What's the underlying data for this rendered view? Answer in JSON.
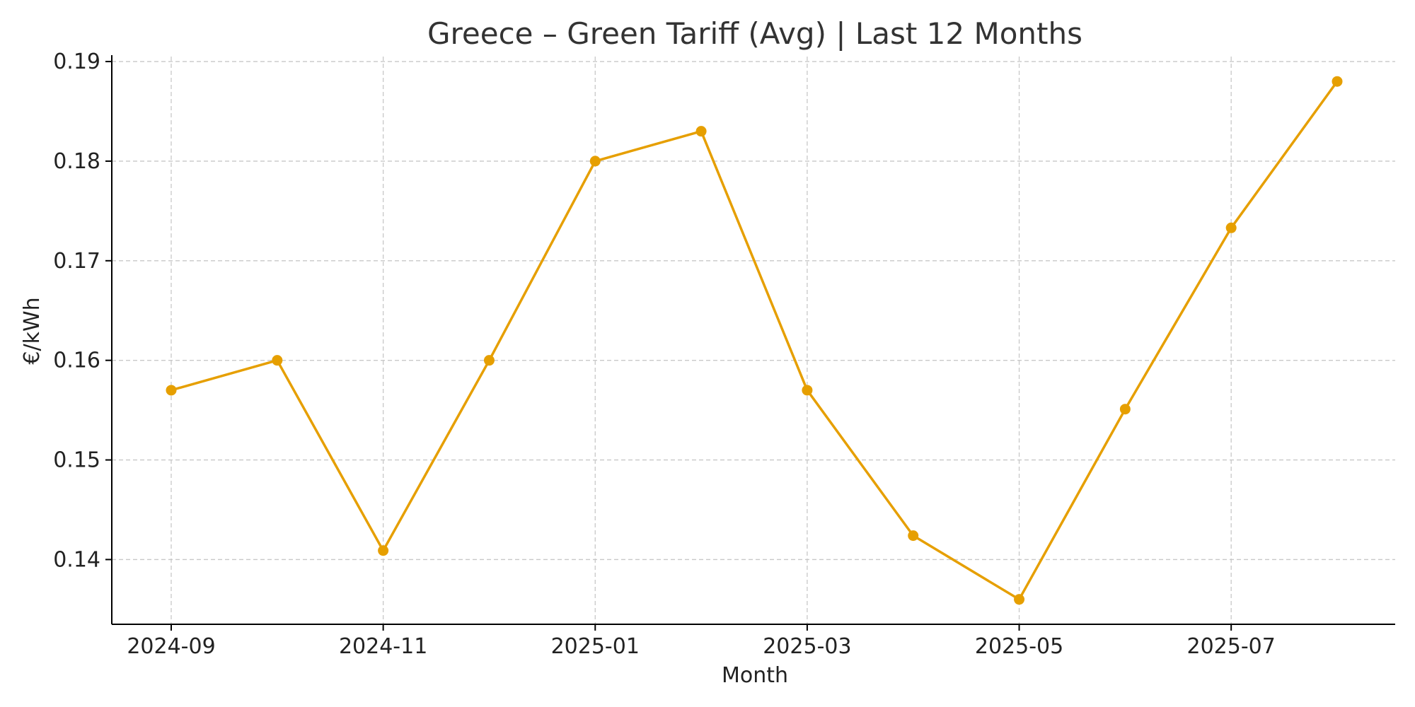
{
  "chart_data": {
    "type": "line",
    "title": "Greece – Green Tariff (Avg) | Last 12 Months",
    "xlabel": "Month",
    "ylabel": "€/kWh",
    "x": [
      "2024-09",
      "2024-10",
      "2024-11",
      "2024-12",
      "2025-01",
      "2025-02",
      "2025-03",
      "2025-04",
      "2025-05",
      "2025-06",
      "2025-07",
      "2025-08"
    ],
    "x_tick_labels": [
      "2024-09",
      "2024-11",
      "2025-01",
      "2025-03",
      "2025-05",
      "2025-07"
    ],
    "y_ticks": [
      "0.14",
      "0.15",
      "0.16",
      "0.17",
      "0.18",
      "0.19"
    ],
    "ylim": [
      0.1335,
      0.1905
    ],
    "grid": true,
    "series": [
      {
        "values": [
          0.157,
          0.16,
          0.1409,
          0.16,
          0.18,
          0.183,
          0.157,
          0.1424,
          0.136,
          0.1551,
          0.1733,
          0.188
        ],
        "color": "#e69f00"
      }
    ]
  }
}
